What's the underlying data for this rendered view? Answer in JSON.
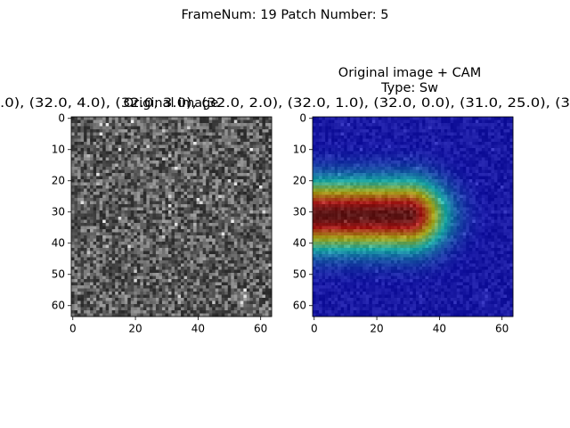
{
  "suptitle": "FrameNum: 19   Patch Number: 5",
  "long_title": ".0), (32.0, 4.0), (32.0, 3.0), (32.0, 2.0), (32.0, 1.0), (32.0, 0.0), (31.0, 25.0), (3",
  "chart_data": [
    {
      "type": "image",
      "title": "Original image",
      "xlim": [
        -0.5,
        63.5
      ],
      "ylim": [
        63.5,
        -0.5
      ],
      "xticks": [
        0,
        20,
        40,
        60
      ],
      "yticks": [
        0,
        10,
        20,
        30,
        40,
        50,
        60
      ],
      "cmap": "gray"
    },
    {
      "type": "image",
      "title": "Original image + CAM",
      "subtitle": "Type: Sw",
      "xlim": [
        -0.5,
        63.5
      ],
      "ylim": [
        63.5,
        -0.5
      ],
      "xticks": [
        0,
        20,
        40,
        60
      ],
      "yticks": [
        0,
        10,
        20,
        30,
        40,
        50,
        60
      ],
      "cmap": "jet"
    }
  ]
}
